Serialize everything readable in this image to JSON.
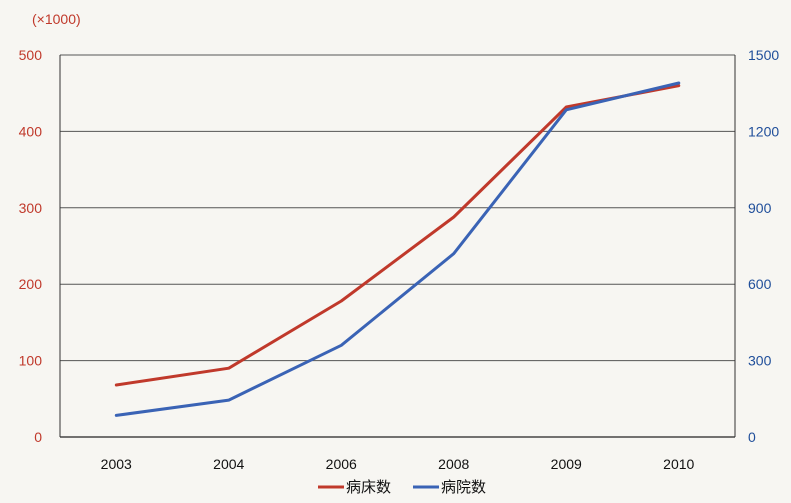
{
  "chart_data": {
    "type": "line",
    "categories": [
      "2003",
      "2004",
      "2006",
      "2008",
      "2009",
      "2010"
    ],
    "unit_label": "(×1000)",
    "series": [
      {
        "name": "病床数",
        "axis": "left",
        "color": "#c0392b",
        "values": [
          68,
          90,
          178,
          288,
          432,
          460
        ]
      },
      {
        "name": "病院数",
        "axis": "right",
        "color": "#3a63b5",
        "values": [
          85,
          145,
          360,
          720,
          1285,
          1390
        ]
      }
    ],
    "y_left": {
      "range": [
        0,
        500
      ],
      "ticks": [
        "0",
        "100",
        "200",
        "300",
        "400",
        "500"
      ],
      "color": "#c0392b"
    },
    "y_right": {
      "range": [
        0,
        1500
      ],
      "ticks": [
        "0",
        "300",
        "600",
        "900",
        "1200",
        "1500"
      ],
      "color": "#1f4e9a"
    },
    "grid": true,
    "legend_position": "bottom"
  }
}
